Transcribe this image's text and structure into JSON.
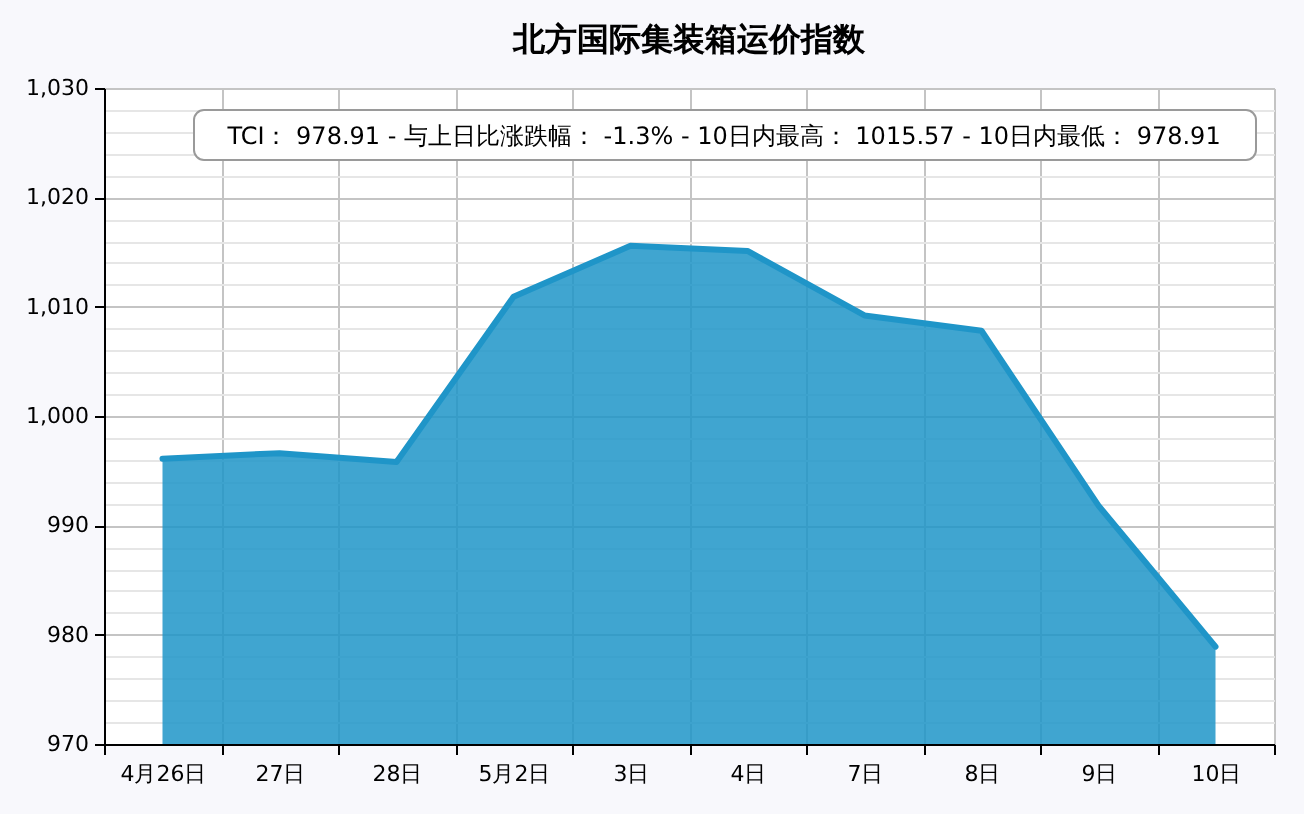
{
  "chart_data": {
    "type": "area",
    "title": "北方国际集装箱运价指数",
    "categories": [
      "4月26日",
      "27日",
      "28日",
      "5月2日",
      "3日",
      "4日",
      "7日",
      "8日",
      "9日",
      "10日"
    ],
    "series": [
      {
        "color": "#1f95c8",
        "values": [
          996.1,
          996.6,
          995.8,
          1010.9,
          1015.57,
          1015.1,
          1009.2,
          1007.8,
          991.8,
          978.91
        ]
      }
    ],
    "ylim": [
      970,
      1030
    ],
    "yticks": [
      970,
      {
        "value": 972,
        "label": null
      },
      {
        "value": 974,
        "label": null
      },
      {
        "value": 976,
        "label": null
      },
      {
        "value": 978,
        "label": null
      },
      980,
      {
        "value": 982,
        "label": null
      },
      {
        "value": 984,
        "label": null
      },
      {
        "value": 986,
        "label": null
      },
      {
        "value": 988,
        "label": null
      },
      990,
      {
        "value": 992,
        "label": null
      },
      {
        "value": 994,
        "label": null
      },
      {
        "value": 996,
        "label": null
      },
      {
        "value": 998,
        "label": null
      },
      {
        "value": 1000,
        "label": "1,000"
      },
      {
        "value": 1002,
        "label": null
      },
      {
        "value": 1004,
        "label": null
      },
      {
        "value": 1006,
        "label": null
      },
      {
        "value": 1008,
        "label": null
      },
      {
        "value": 1010,
        "label": "1,010"
      },
      {
        "value": 1012,
        "label": null
      },
      {
        "value": 1014,
        "label": null
      },
      {
        "value": 1016,
        "label": null
      },
      {
        "value": 1018,
        "label": null
      },
      {
        "value": 1020,
        "label": "1,020"
      },
      {
        "value": 1022,
        "label": null
      },
      {
        "value": 1024,
        "label": null
      },
      {
        "value": 1026,
        "label": null
      },
      {
        "value": 1028,
        "label": null
      },
      {
        "value": 1030,
        "label": "1,030"
      }
    ],
    "grid": true,
    "annotations": [
      "TCI： 978.91 - 与上日比涨跌幅： -1.3% - 10日内最高： 1015.57 - 10日内最低： 978.91"
    ]
  }
}
